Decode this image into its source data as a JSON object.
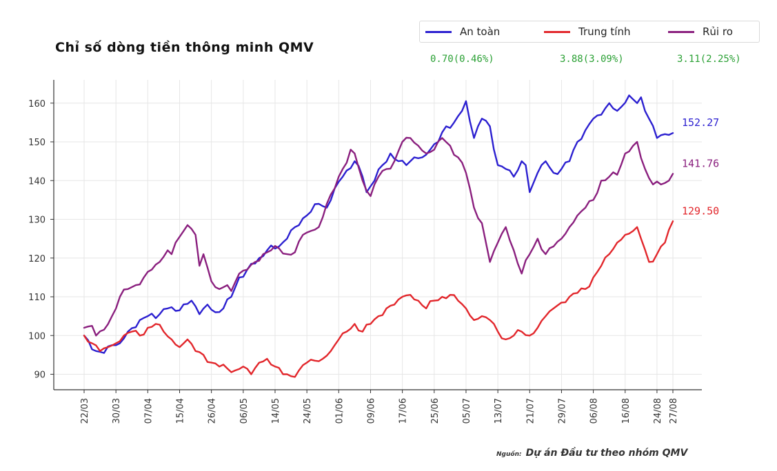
{
  "chart_data": {
    "type": "line",
    "title": "Chỉ số dòng tiền thông minh QMV",
    "source_label": "Nguồn:",
    "source_text": "Dự án Đầu tư theo nhóm QMV",
    "ylim": [
      86,
      166
    ],
    "yticks": [
      90,
      100,
      110,
      120,
      130,
      140,
      150,
      160
    ],
    "x_tick_labels": [
      "22/03",
      "30/03",
      "07/04",
      "15/04",
      "26/04",
      "06/05",
      "14/05",
      "24/05",
      "01/06",
      "09/06",
      "17/06",
      "25/06",
      "05/07",
      "13/07",
      "21/07",
      "29/07",
      "06/08",
      "16/08",
      "24/08",
      "27/08"
    ],
    "x_tick_index": [
      0,
      8,
      16,
      24,
      32,
      40,
      48,
      56,
      64,
      72,
      80,
      88,
      96,
      104,
      112,
      120,
      128,
      136,
      144,
      148
    ],
    "n_points": 149,
    "grid": true,
    "series": [
      {
        "name": "An toàn",
        "color": "#2b1fd0",
        "change": "0.70(0.46%)",
        "last_label": "152.27",
        "anchors": [
          [
            0,
            100
          ],
          [
            3,
            96
          ],
          [
            5,
            95.5
          ],
          [
            7,
            97.5
          ],
          [
            9,
            98
          ],
          [
            11,
            101
          ],
          [
            14,
            104
          ],
          [
            16,
            105
          ],
          [
            19,
            105.5
          ],
          [
            21,
            107
          ],
          [
            24,
            106.5
          ],
          [
            27,
            109
          ],
          [
            29,
            105.5
          ],
          [
            31,
            108
          ],
          [
            33,
            106
          ],
          [
            35,
            107
          ],
          [
            37,
            110
          ],
          [
            39,
            115
          ],
          [
            41,
            117
          ],
          [
            44,
            120
          ],
          [
            46,
            122
          ],
          [
            49,
            123
          ],
          [
            51,
            125
          ],
          [
            53,
            128
          ],
          [
            56,
            131
          ],
          [
            59,
            134
          ],
          [
            61,
            133
          ],
          [
            63,
            138
          ],
          [
            65,
            141
          ],
          [
            68,
            145
          ],
          [
            70,
            141
          ],
          [
            71,
            137
          ],
          [
            73,
            140
          ],
          [
            75,
            144
          ],
          [
            77,
            147
          ],
          [
            79,
            145
          ],
          [
            81,
            144
          ],
          [
            83,
            146
          ],
          [
            85,
            146
          ],
          [
            87,
            148
          ],
          [
            89,
            150
          ],
          [
            91,
            154
          ],
          [
            93,
            155
          ],
          [
            95,
            158
          ],
          [
            96,
            160.5
          ],
          [
            98,
            151
          ],
          [
            100,
            156
          ],
          [
            102,
            154
          ],
          [
            104,
            144
          ],
          [
            106,
            143
          ],
          [
            108,
            141
          ],
          [
            110,
            145
          ],
          [
            111,
            144
          ],
          [
            112,
            137
          ],
          [
            114,
            142
          ],
          [
            116,
            145
          ],
          [
            118,
            142
          ],
          [
            120,
            143
          ],
          [
            122,
            145
          ],
          [
            124,
            150
          ],
          [
            126,
            153
          ],
          [
            128,
            156
          ],
          [
            130,
            157
          ],
          [
            132,
            160
          ],
          [
            134,
            158
          ],
          [
            137,
            162
          ],
          [
            139,
            160
          ],
          [
            140,
            161.5
          ],
          [
            142,
            156
          ],
          [
            144,
            151
          ],
          [
            146,
            152
          ],
          [
            148,
            152.27
          ]
        ]
      },
      {
        "name": "Trung tính",
        "color": "#e2262b",
        "change": "3.88(3.09%)",
        "last_label": "129.50",
        "anchors": [
          [
            0,
            100
          ],
          [
            2,
            98
          ],
          [
            4,
            96
          ],
          [
            6,
            97
          ],
          [
            8,
            98
          ],
          [
            10,
            100
          ],
          [
            12,
            101
          ],
          [
            14,
            100
          ],
          [
            16,
            102
          ],
          [
            18,
            103
          ],
          [
            20,
            101
          ],
          [
            22,
            99
          ],
          [
            24,
            97
          ],
          [
            26,
            99
          ],
          [
            28,
            96
          ],
          [
            30,
            95
          ],
          [
            32,
            93
          ],
          [
            34,
            92
          ],
          [
            36,
            91.5
          ],
          [
            38,
            91
          ],
          [
            40,
            92
          ],
          [
            42,
            90
          ],
          [
            44,
            93
          ],
          [
            46,
            94
          ],
          [
            48,
            92
          ],
          [
            50,
            90
          ],
          [
            52,
            89.5
          ],
          [
            54,
            91
          ],
          [
            56,
            93
          ],
          [
            58,
            93.5
          ],
          [
            60,
            94
          ],
          [
            62,
            96
          ],
          [
            64,
            99
          ],
          [
            66,
            101
          ],
          [
            68,
            103
          ],
          [
            70,
            101
          ],
          [
            72,
            103
          ],
          [
            74,
            105
          ],
          [
            76,
            107
          ],
          [
            78,
            108
          ],
          [
            80,
            110
          ],
          [
            82,
            110.5
          ],
          [
            84,
            109
          ],
          [
            86,
            107
          ],
          [
            88,
            109
          ],
          [
            90,
            110
          ],
          [
            92,
            110.5
          ],
          [
            94,
            109
          ],
          [
            96,
            107
          ],
          [
            98,
            104
          ],
          [
            100,
            105
          ],
          [
            102,
            104
          ],
          [
            104,
            101
          ],
          [
            106,
            99
          ],
          [
            108,
            100
          ],
          [
            110,
            101
          ],
          [
            112,
            100
          ],
          [
            114,
            102
          ],
          [
            116,
            105
          ],
          [
            118,
            107
          ],
          [
            120,
            108.5
          ],
          [
            122,
            110
          ],
          [
            124,
            111
          ],
          [
            126,
            112
          ],
          [
            128,
            115
          ],
          [
            130,
            118
          ],
          [
            132,
            121
          ],
          [
            134,
            124
          ],
          [
            136,
            126
          ],
          [
            138,
            127
          ],
          [
            139,
            128
          ],
          [
            140,
            125
          ],
          [
            142,
            119
          ],
          [
            144,
            121
          ],
          [
            146,
            124
          ],
          [
            148,
            129.5
          ]
        ]
      },
      {
        "name": "Rủi ro",
        "color": "#8a1f7e",
        "change": "3.11(2.25%)",
        "last_label": "141.76",
        "anchors": [
          [
            0,
            102
          ],
          [
            2,
            102.5
          ],
          [
            3,
            100
          ],
          [
            5,
            101.5
          ],
          [
            7,
            105
          ],
          [
            9,
            110
          ],
          [
            11,
            112
          ],
          [
            13,
            113
          ],
          [
            15,
            115
          ],
          [
            17,
            117
          ],
          [
            19,
            119
          ],
          [
            21,
            122
          ],
          [
            22,
            121
          ],
          [
            23,
            124
          ],
          [
            25,
            127
          ],
          [
            26,
            128.5
          ],
          [
            28,
            126
          ],
          [
            29,
            118
          ],
          [
            30,
            121
          ],
          [
            32,
            114
          ],
          [
            34,
            112
          ],
          [
            36,
            113
          ],
          [
            37,
            111.5
          ],
          [
            39,
            116
          ],
          [
            41,
            117
          ],
          [
            43,
            119
          ],
          [
            45,
            121
          ],
          [
            47,
            122
          ],
          [
            49,
            122.5
          ],
          [
            51,
            121
          ],
          [
            53,
            121.5
          ],
          [
            55,
            126
          ],
          [
            57,
            127
          ],
          [
            59,
            128
          ],
          [
            61,
            134
          ],
          [
            63,
            138
          ],
          [
            65,
            143
          ],
          [
            67,
            148
          ],
          [
            68,
            147
          ],
          [
            70,
            140
          ],
          [
            72,
            136
          ],
          [
            74,
            141
          ],
          [
            76,
            143
          ],
          [
            78,
            145
          ],
          [
            80,
            150
          ],
          [
            82,
            151
          ],
          [
            84,
            149
          ],
          [
            86,
            147
          ],
          [
            88,
            148
          ],
          [
            90,
            151
          ],
          [
            92,
            149
          ],
          [
            94,
            146
          ],
          [
            96,
            142
          ],
          [
            98,
            133
          ],
          [
            100,
            129
          ],
          [
            102,
            119
          ],
          [
            104,
            124
          ],
          [
            106,
            128
          ],
          [
            108,
            122
          ],
          [
            110,
            116
          ],
          [
            112,
            121
          ],
          [
            114,
            125
          ],
          [
            116,
            121
          ],
          [
            118,
            123
          ],
          [
            120,
            125
          ],
          [
            122,
            128
          ],
          [
            124,
            131
          ],
          [
            126,
            133
          ],
          [
            128,
            135
          ],
          [
            130,
            140
          ],
          [
            132,
            141
          ],
          [
            134,
            141.5
          ],
          [
            136,
            147
          ],
          [
            138,
            149
          ],
          [
            139,
            150
          ],
          [
            141,
            143
          ],
          [
            143,
            139
          ],
          [
            145,
            139
          ],
          [
            147,
            140
          ],
          [
            148,
            141.76
          ]
        ]
      }
    ]
  }
}
